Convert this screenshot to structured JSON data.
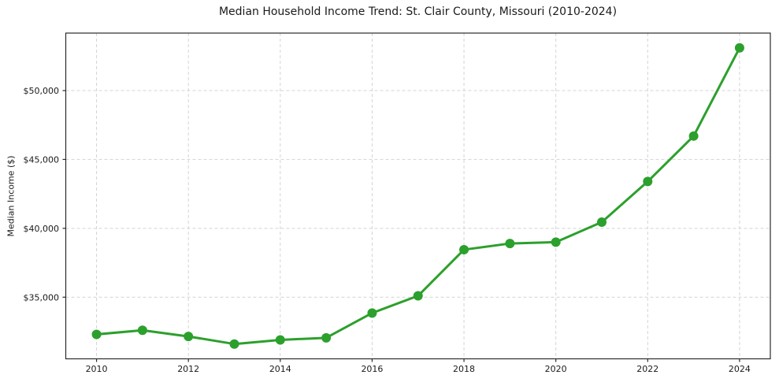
{
  "chart_data": {
    "type": "line",
    "title": "Median Household Income Trend: St. Clair County, Missouri (2010-2024)",
    "xlabel": "",
    "ylabel": "Median Income ($)",
    "series": [
      {
        "name": "Median household income",
        "x": [
          2010,
          2011,
          2012,
          2013,
          2014,
          2015,
          2016,
          2017,
          2018,
          2019,
          2020,
          2021,
          2022,
          2023,
          2024
        ],
        "values": [
          32300,
          32600,
          32150,
          31600,
          31900,
          32050,
          33850,
          35100,
          38450,
          38900,
          39000,
          40450,
          43400,
          46700,
          53100
        ]
      }
    ],
    "xlim": [
      2009.33,
      2024.67
    ],
    "ylim": [
      30525,
      54175
    ],
    "xticks": [
      2010,
      2012,
      2014,
      2016,
      2018,
      2020,
      2022,
      2024
    ],
    "xtick_labels": [
      "2010",
      "2012",
      "2014",
      "2016",
      "2018",
      "2020",
      "2022",
      "2024"
    ],
    "yticks": [
      35000,
      40000,
      45000,
      50000
    ],
    "ytick_labels": [
      "$35,000",
      "$40,000",
      "$45,000",
      "$50,000"
    ],
    "grid": true,
    "grid_style": "dashed",
    "legend": "none",
    "line_color": "#2ca02c",
    "marker": "circle",
    "marker_size": 6,
    "line_width": 3,
    "grid_color": "#d4d4d4",
    "axis_color": "#2b2b2b",
    "text_color": "#1a1a1a",
    "background_color": "#ffffff"
  }
}
